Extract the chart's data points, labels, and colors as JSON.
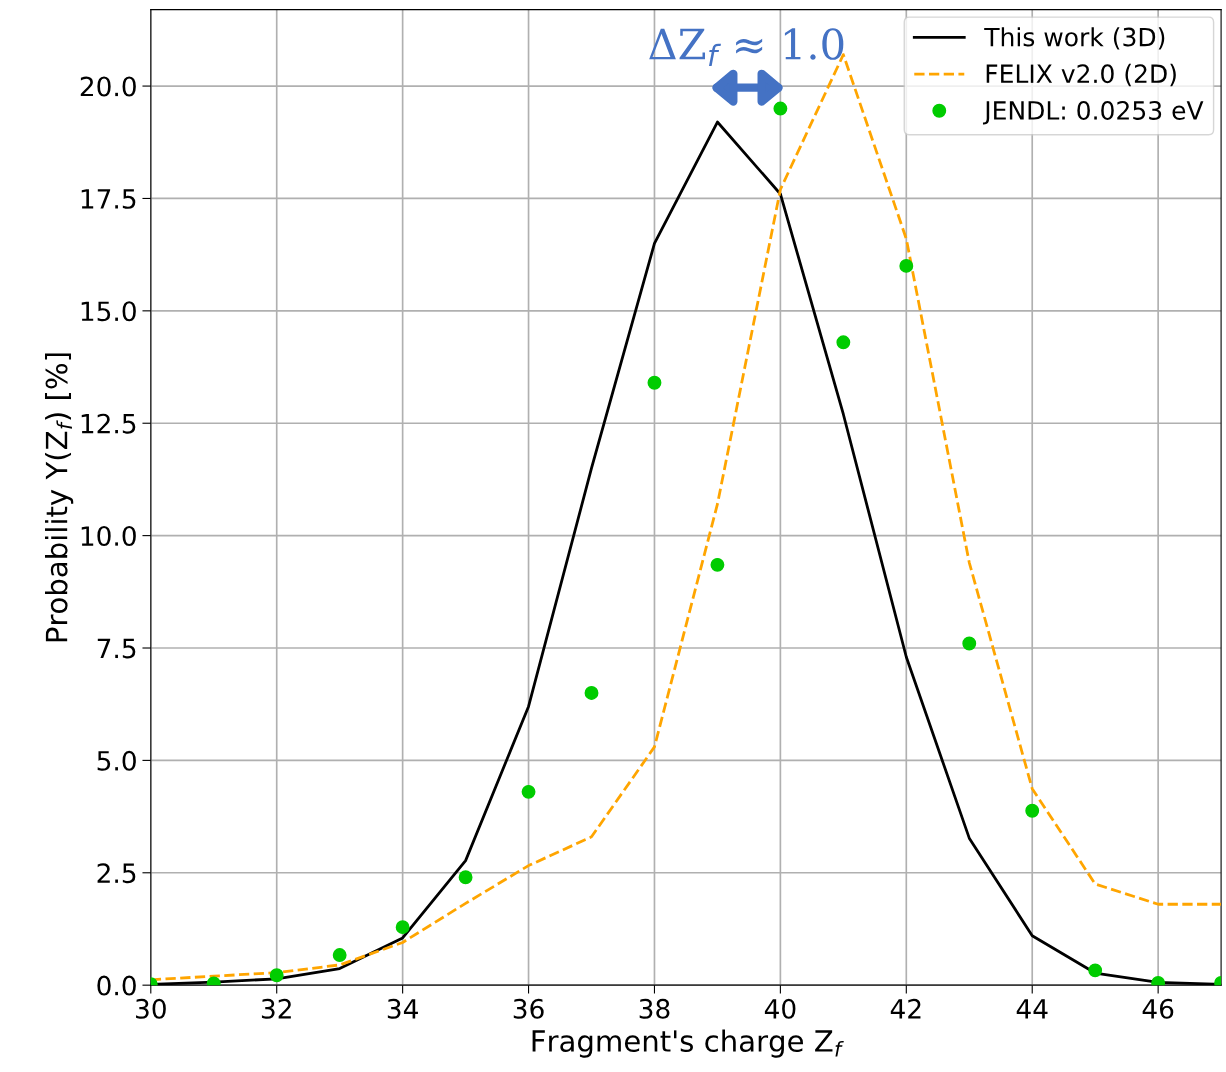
{
  "chart_data": {
    "type": "line",
    "xlabel": "Fragment's charge Z$_{f}$",
    "ylabel": "Probability Y(Z$_{f}$) [%]",
    "x": [
      30,
      31,
      32,
      33,
      34,
      35,
      36,
      37,
      38,
      39,
      40,
      41,
      42,
      43,
      44,
      45,
      46,
      47
    ],
    "series": [
      {
        "name": "This work (3D)",
        "color": "#000000",
        "line_style": "solid",
        "marker": "none",
        "values": [
          0.02,
          0.07,
          0.14,
          0.37,
          1.05,
          2.77,
          6.2,
          11.5,
          16.5,
          19.2,
          17.6,
          12.7,
          7.3,
          3.27,
          1.1,
          0.27,
          0.06,
          0.02
        ]
      },
      {
        "name": "FELIX v2.0 (2D)",
        "color": "#ffa500",
        "line_style": "dashed",
        "marker": "none",
        "values": [
          0.12,
          0.2,
          0.28,
          0.45,
          0.95,
          1.82,
          2.66,
          3.3,
          5.3,
          10.7,
          17.7,
          20.7,
          16.6,
          9.4,
          4.37,
          2.25,
          1.8,
          1.8
        ]
      },
      {
        "name": "JENDL: 0.0253 eV",
        "color": "#00cc00",
        "type": "scatter",
        "marker": "circle",
        "values": [
          0.02,
          0.04,
          0.22,
          0.67,
          1.29,
          2.4,
          4.3,
          6.5,
          13.4,
          9.35,
          19.5,
          14.3,
          16.0,
          7.6,
          3.88,
          0.33,
          0.05,
          0.05
        ]
      }
    ],
    "xlim": [
      30,
      47
    ],
    "ylim": [
      0,
      21.7
    ],
    "xticks": [
      30,
      32,
      34,
      36,
      38,
      40,
      42,
      44,
      46
    ],
    "yticks": [
      {
        "value": 0,
        "label": "0.0"
      },
      {
        "value": 2.5,
        "label": "2.5"
      },
      {
        "value": 5,
        "label": "5.0"
      },
      {
        "value": 7.5,
        "label": "7.5"
      },
      {
        "value": 10,
        "label": "10.0"
      },
      {
        "value": 12.5,
        "label": "12.5"
      },
      {
        "value": 15,
        "label": "15.0"
      },
      {
        "value": 17.5,
        "label": "17.5"
      },
      {
        "value": 20,
        "label": "20.0"
      }
    ],
    "grid": true,
    "legend": "top right",
    "annotations": [
      "ΔZ$_{f}$ ≈ 1.0"
    ]
  }
}
